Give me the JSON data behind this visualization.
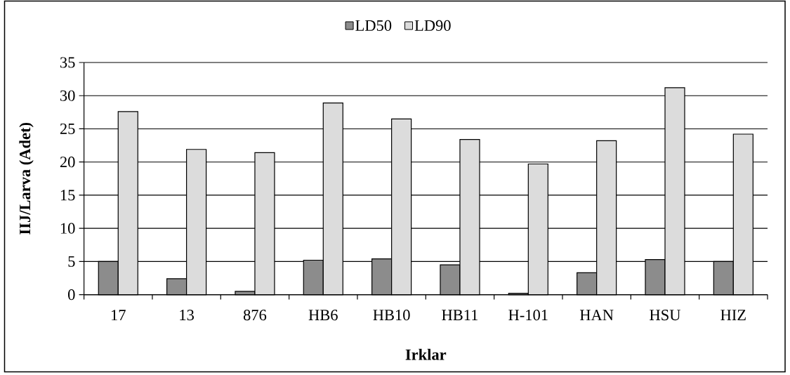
{
  "chart_data": {
    "type": "bar",
    "xlabel": "Irklar",
    "ylabel": "IIJ/Larva (Adet)",
    "categories": [
      "17",
      "13",
      "876",
      "HB6",
      "HB10",
      "HB11",
      "H-101",
      "HAN",
      "HSU",
      "HIZ"
    ],
    "series": [
      {
        "name": "LD50",
        "color": "#8c8c8c",
        "values": [
          5.0,
          2.4,
          0.5,
          5.2,
          5.4,
          4.5,
          0.2,
          3.3,
          5.3,
          5.0
        ]
      },
      {
        "name": "LD90",
        "color": "#dcdcdc",
        "values": [
          27.6,
          21.9,
          21.4,
          28.9,
          26.5,
          23.4,
          19.7,
          23.2,
          31.2,
          24.2
        ]
      }
    ],
    "ylim": [
      0,
      35
    ],
    "yticks": [
      0,
      5,
      10,
      15,
      20,
      25,
      30,
      35
    ],
    "grid": "y",
    "legend": "top"
  }
}
